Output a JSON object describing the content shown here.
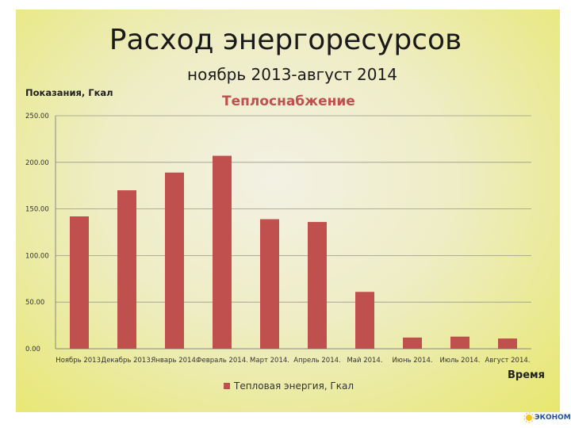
{
  "slide": {
    "title": "Расход энергоресурсов",
    "subtitle": "ноябрь 2013-август 2014",
    "logo_text": "ЭКОНОМ"
  },
  "chart_data": {
    "type": "bar",
    "title": "Теплоснабжение",
    "ylabel": "Показания, Гкал",
    "xlabel": "Время",
    "ylim": [
      0,
      250
    ],
    "yticks": [
      "0.00",
      "50.00",
      "100.00",
      "150.00",
      "200.00",
      "250.00"
    ],
    "grid": true,
    "legend_position": "bottom",
    "categories": [
      "Ноябрь 2013.",
      "Декабрь 2013.",
      "Январь 2014.",
      "Февраль 2014.",
      "Март 2014.",
      "Апрель 2014.",
      "Май 2014.",
      "Июнь 2014.",
      "Июль 2014.",
      "Август 2014."
    ],
    "series": [
      {
        "name": "Тепловая энергия, Гкал",
        "color": "#c0504d",
        "values": [
          142,
          170,
          189,
          207,
          139,
          136,
          61,
          12,
          13,
          11
        ]
      }
    ]
  }
}
